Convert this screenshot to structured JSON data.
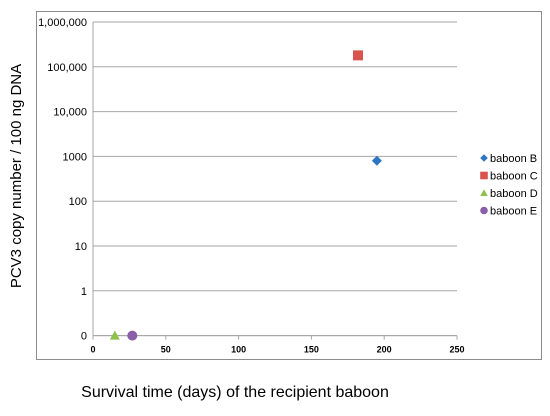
{
  "chart_data": {
    "type": "scatter",
    "title": "",
    "xlabel": "Survival time (days) of the recipient baboon",
    "ylabel": "PCV3 copy number / 100 ng DNA",
    "xlim": [
      0,
      250
    ],
    "x_ticks": [
      0,
      50,
      100,
      150,
      200,
      250
    ],
    "y_scale": "log",
    "y_ticks": [
      {
        "value": 0,
        "label": "0"
      },
      {
        "value": 1,
        "label": "1"
      },
      {
        "value": 10,
        "label": "10"
      },
      {
        "value": 100,
        "label": "100"
      },
      {
        "value": 1000,
        "label": "1000"
      },
      {
        "value": 10000,
        "label": "10,000"
      },
      {
        "value": 100000,
        "label": "100,000"
      },
      {
        "value": 1000000,
        "label": "1,000,000"
      }
    ],
    "grid": "horizontal",
    "legend_position": "right",
    "series": [
      {
        "name": "baboon B",
        "marker": "diamond",
        "color": "#2e75c2",
        "points": [
          {
            "x": 195,
            "y": 800
          }
        ]
      },
      {
        "name": "baboon C",
        "marker": "square",
        "color": "#d9534f",
        "points": [
          {
            "x": 182,
            "y": 180000
          }
        ]
      },
      {
        "name": "baboon D",
        "marker": "triangle",
        "color": "#8fc04b",
        "points": [
          {
            "x": 15,
            "y": 0
          }
        ]
      },
      {
        "name": "baboon E",
        "marker": "circle",
        "color": "#8a5ea8",
        "points": [
          {
            "x": 27,
            "y": 0
          }
        ]
      }
    ]
  }
}
